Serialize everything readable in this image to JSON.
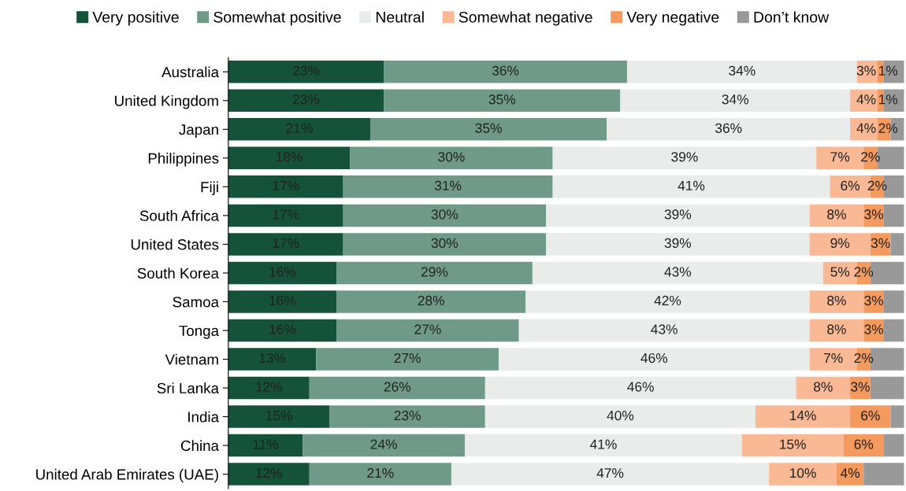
{
  "chart_data": {
    "type": "bar",
    "orientation": "horizontal",
    "stacked": true,
    "legend": "top",
    "grid": false,
    "tick_labels": "y",
    "xlim": [
      0,
      100
    ],
    "categories": [
      "Australia",
      "United Kingdom",
      "Japan",
      "Philippines",
      "Fiji",
      "South Africa",
      "United States",
      "South Korea",
      "Samoa",
      "Tonga",
      "Vietnam",
      "Sri Lanka",
      "India",
      "China",
      "United Arab Emirates (UAE)"
    ],
    "series": [
      {
        "name": "Very positive",
        "color": "#145239",
        "values": [
          23,
          23,
          21,
          18,
          17,
          17,
          17,
          16,
          16,
          16,
          13,
          12,
          15,
          11,
          12
        ],
        "value_labels": [
          "23%",
          "23%",
          "21%",
          "18%",
          "17%",
          "17%",
          "17%",
          "16%",
          "16%",
          "16%",
          "13%",
          "12%",
          "15%",
          "11%",
          "12%"
        ]
      },
      {
        "name": "Somewhat positive",
        "color": "#6f9a8a",
        "values": [
          36,
          35,
          35,
          30,
          31,
          30,
          30,
          29,
          28,
          27,
          27,
          26,
          23,
          24,
          21
        ],
        "value_labels": [
          "36%",
          "35%",
          "35%",
          "30%",
          "31%",
          "30%",
          "30%",
          "29%",
          "28%",
          "27%",
          "27%",
          "26%",
          "23%",
          "24%",
          "21%"
        ]
      },
      {
        "name": "Neutral",
        "color": "#e9ecea",
        "values": [
          34,
          34,
          36,
          39,
          41,
          39,
          39,
          43,
          42,
          43,
          46,
          46,
          40,
          41,
          47
        ],
        "value_labels": [
          "34%",
          "34%",
          "36%",
          "39%",
          "41%",
          "39%",
          "39%",
          "43%",
          "42%",
          "43%",
          "46%",
          "46%",
          "40%",
          "41%",
          "47%"
        ]
      },
      {
        "name": "Somewhat negative",
        "color": "#f9b995",
        "values": [
          3,
          4,
          4,
          7,
          6,
          8,
          9,
          5,
          8,
          8,
          7,
          8,
          14,
          15,
          10
        ],
        "value_labels": [
          "3%",
          "4%",
          "4%",
          "7%",
          "6%",
          "8%",
          "9%",
          "5%",
          "8%",
          "8%",
          "7%",
          "8%",
          "14%",
          "15%",
          "10%"
        ]
      },
      {
        "name": "Very negative",
        "color": "#f59a5e",
        "values": [
          1,
          1,
          2,
          2,
          2,
          3,
          3,
          2,
          3,
          3,
          2,
          3,
          6,
          6,
          4
        ],
        "value_labels": [
          "1%",
          "1%",
          "2%",
          "2%",
          "2%",
          "3%",
          "3%",
          "2%",
          "3%",
          "3%",
          "2%",
          "3%",
          "6%",
          "6%",
          "4%"
        ]
      },
      {
        "name": "Don’t know",
        "color": "#999999",
        "values": [
          3,
          3,
          2,
          4,
          3,
          3,
          2,
          5,
          3,
          3,
          5,
          5,
          2,
          3,
          6
        ],
        "value_labels": [
          null,
          null,
          null,
          null,
          null,
          null,
          null,
          null,
          null,
          null,
          null,
          null,
          null,
          null,
          null
        ]
      }
    ]
  }
}
